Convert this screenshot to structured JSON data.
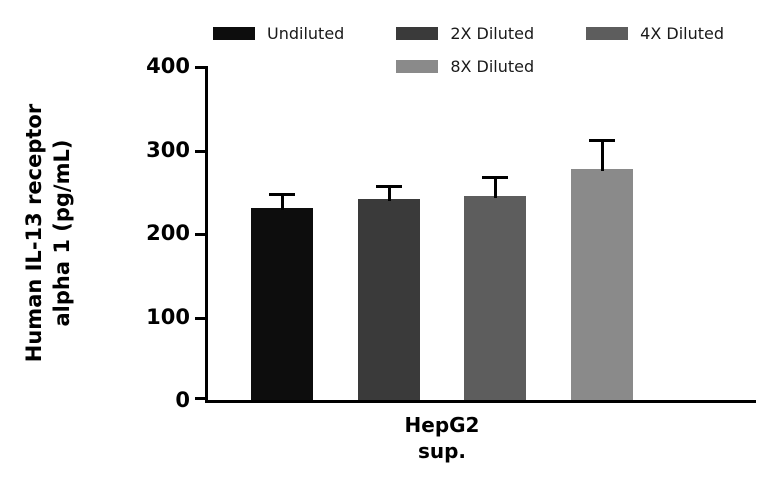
{
  "chart_data": {
    "type": "bar",
    "title": "",
    "categories": [
      "HepG2 sup."
    ],
    "series": [
      {
        "name": "Undiluted",
        "value": 230,
        "error": 18,
        "color": "#0d0d0d"
      },
      {
        "name": "2X Diluted",
        "value": 241,
        "error": 16,
        "color": "#3a3a3a"
      },
      {
        "name": "4X Diluted",
        "value": 244,
        "error": 24,
        "color": "#5d5d5d"
      },
      {
        "name": "8X Diluted",
        "value": 277,
        "error": 35,
        "color": "#8a8a8a"
      }
    ],
    "ylabel_line1": "Human IL-13 receptor",
    "ylabel_line2": "alpha 1 (pg/mL)",
    "xlabel_line1": "HepG2",
    "xlabel_line2": "sup.",
    "ylim": [
      0,
      400
    ],
    "yticks": [
      0,
      100,
      200,
      300,
      400
    ],
    "grid": false,
    "legend_position": "top",
    "error_bars": "upper"
  }
}
